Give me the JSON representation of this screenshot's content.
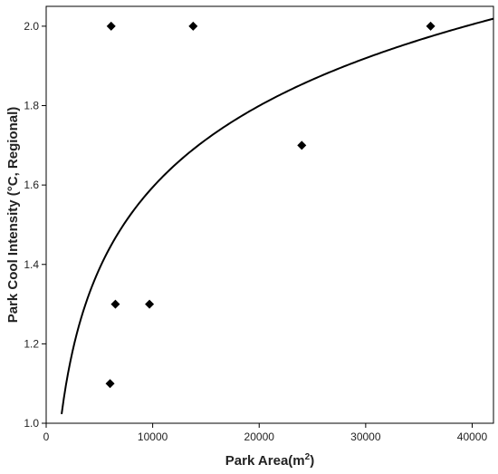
{
  "chart_data": {
    "type": "scatter",
    "xlabel": "Park Area(m",
    "xlabel_sup": "2",
    "xlabel_end": ")",
    "ylabel": "Park Cool Intensity (°C, Regional)",
    "xlim": [
      0,
      42000
    ],
    "ylim": [
      1.0,
      2.05
    ],
    "xticks": [
      0,
      10000,
      20000,
      30000,
      40000
    ],
    "yticks": [
      1.0,
      1.2,
      1.4,
      1.6,
      1.8,
      2.0
    ],
    "xtick_labels": [
      "0",
      "10000",
      "20000",
      "30000",
      "40000"
    ],
    "ytick_labels": [
      "1.0",
      "1.2",
      "1.4",
      "1.6",
      "1.8",
      "2.0"
    ],
    "points": [
      {
        "x": 6100,
        "y": 2.0
      },
      {
        "x": 13800,
        "y": 2.0
      },
      {
        "x": 36100,
        "y": 2.0
      },
      {
        "x": 24000,
        "y": 1.7
      },
      {
        "x": 6500,
        "y": 1.3
      },
      {
        "x": 9700,
        "y": 1.3
      },
      {
        "x": 6000,
        "y": 1.1
      }
    ],
    "fit": {
      "model": "logarithmic",
      "a": -1.13,
      "b": 0.2958,
      "x_start": 1450,
      "x_end": 42000
    },
    "marker_color": "#000000",
    "line_color": "#000000",
    "grid": false,
    "legend": "none"
  }
}
